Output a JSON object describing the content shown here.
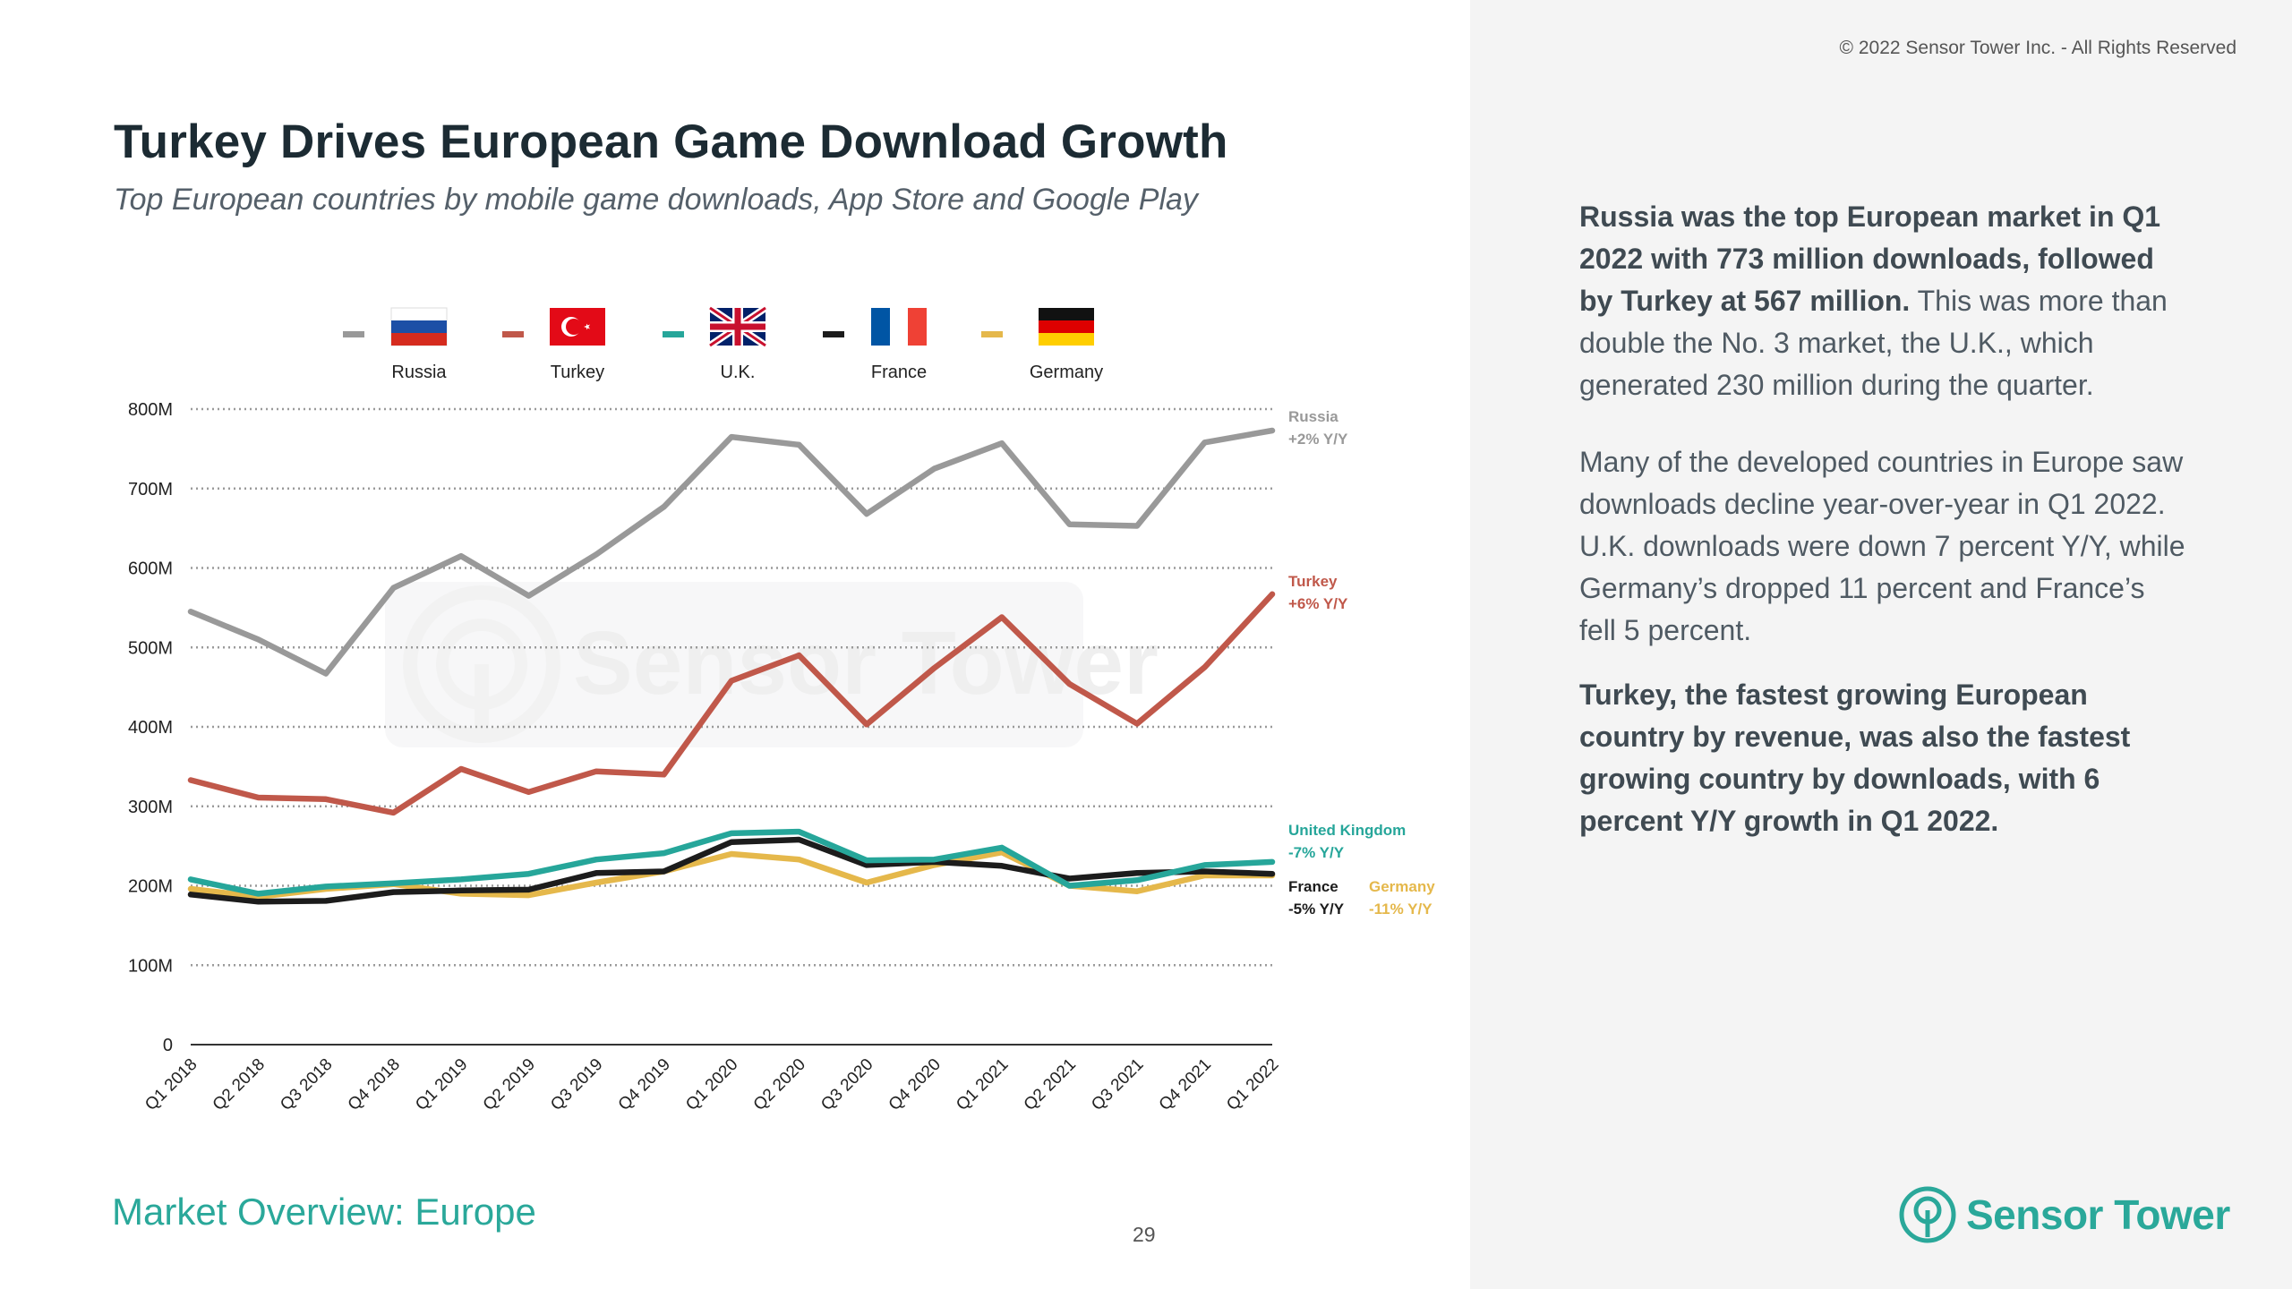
{
  "header": {
    "title": "Turkey Drives European Game Download Growth",
    "subtitle": "Top European countries by mobile game downloads, App Store and Google Play",
    "copyright": "© 2022 Sensor Tower Inc. - All Rights Reserved"
  },
  "footer": {
    "section": "Market Overview: Europe",
    "page_number": "29"
  },
  "watermark": "Sensor Tower",
  "brand": {
    "name": "Sensor Tower",
    "accent": "#2aa89a"
  },
  "commentary": {
    "p1_bold": "Russia was the top European market in Q1 2022 with 773 million downloads, followed by Turkey at 567 million.",
    "p1_rest": " This was more than double the No. 3 market, the U.K., which generated 230 million during the quarter.",
    "p2": "Many of the developed countries in Europe saw downloads decline year-over-year in Q1 2022. U.K. downloads were down 7 percent Y/Y, while Germany’s dropped 11 percent and France’s fell 5 percent.",
    "p3_bold": "Turkey, the fastest growing European country by revenue, was also the fastest growing country by downloads, with 6 percent Y/Y growth in Q1 2022."
  },
  "chart_data": {
    "type": "line",
    "title": "",
    "xlabel": "",
    "ylabel": "",
    "ylim": [
      0,
      800
    ],
    "yticks": [
      {
        "value": 800,
        "label": "800M"
      },
      {
        "value": 700,
        "label": "700M"
      },
      {
        "value": 600,
        "label": "600M"
      },
      {
        "value": 500,
        "label": "500M"
      },
      {
        "value": 400,
        "label": "400M"
      },
      {
        "value": 300,
        "label": "300M"
      },
      {
        "value": 200,
        "label": "200M"
      },
      {
        "value": 100,
        "label": "100M"
      },
      {
        "value": 0,
        "label": "0"
      }
    ],
    "grid": true,
    "legend_position": "top",
    "categories": [
      "Q1 2018",
      "Q2 2018",
      "Q3 2018",
      "Q4 2018",
      "Q1 2019",
      "Q2 2019",
      "Q3 2019",
      "Q4 2019",
      "Q1 2020",
      "Q2 2020",
      "Q3 2020",
      "Q4 2020",
      "Q1 2021",
      "Q2 2021",
      "Q3 2021",
      "Q4 2021",
      "Q1 2022"
    ],
    "series": [
      {
        "name": "Russia",
        "legend_label": "Russia",
        "color": "#999999",
        "flag": "russia-flag",
        "end_label": "Russia",
        "end_change": "+2% Y/Y",
        "values": [
          545,
          510,
          467,
          575,
          615,
          565,
          617,
          677,
          765,
          755,
          668,
          725,
          757,
          655,
          653,
          758,
          773
        ]
      },
      {
        "name": "Turkey",
        "legend_label": "Turkey",
        "color": "#c0584a",
        "flag": "turkey-flag",
        "end_label": "Turkey",
        "end_change": "+6% Y/Y",
        "values": [
          333,
          311,
          309,
          292,
          347,
          318,
          344,
          340,
          458,
          490,
          403,
          474,
          538,
          454,
          404,
          475,
          567
        ]
      },
      {
        "name": "United Kingdom",
        "legend_label": "U.K.",
        "color": "#26a69a",
        "flag": "uk-flag",
        "end_label": "United Kingdom",
        "end_change": "-7% Y/Y",
        "values": [
          208,
          190,
          199,
          203,
          208,
          215,
          233,
          241,
          266,
          268,
          232,
          233,
          248,
          200,
          207,
          226,
          230
        ]
      },
      {
        "name": "France",
        "legend_label": "France",
        "color": "#1c1c1c",
        "flag": "france-flag",
        "end_label": "France",
        "end_change": "-5% Y/Y",
        "values": [
          189,
          180,
          181,
          192,
          194,
          195,
          216,
          218,
          255,
          258,
          226,
          230,
          225,
          209,
          216,
          218,
          215
        ]
      },
      {
        "name": "Germany",
        "legend_label": "Germany",
        "color": "#e5b84b",
        "flag": "germany-flag",
        "end_label": "Germany",
        "end_change": "-11% Y/Y",
        "values": [
          196,
          186,
          196,
          202,
          190,
          188,
          204,
          218,
          240,
          233,
          204,
          226,
          242,
          200,
          193,
          213,
          213
        ]
      }
    ]
  }
}
